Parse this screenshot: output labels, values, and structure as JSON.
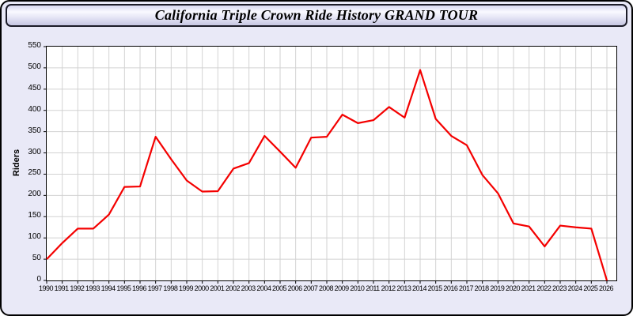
{
  "header": {
    "title": "California Triple Crown Ride History GRAND TOUR"
  },
  "colors": {
    "line": "#f40000",
    "page_background": "#e9e9f7",
    "plot_background": "#ffffff",
    "gridline": "#d2d2d2",
    "axis": "#000000"
  },
  "chart_data": {
    "type": "line",
    "title": "California Triple Crown Ride History GRAND TOUR",
    "xlabel": "",
    "ylabel": "Riders",
    "ylim": [
      0,
      550
    ],
    "ytick_step": 50,
    "grid": true,
    "legend": "none",
    "x": [
      1990,
      1991,
      1992,
      1993,
      1994,
      1995,
      1996,
      1997,
      1998,
      1999,
      2000,
      2001,
      2002,
      2003,
      2004,
      2005,
      2006,
      2007,
      2008,
      2009,
      2010,
      2011,
      2012,
      2013,
      2014,
      2015,
      2016,
      2017,
      2018,
      2019,
      2020,
      2021,
      2022,
      2023,
      2024,
      2025,
      2026
    ],
    "series": [
      {
        "name": "Riders",
        "color": "#f40000",
        "values": [
          50,
          88,
          122,
          122,
          155,
          220,
          221,
          338,
          285,
          235,
          209,
          210,
          263,
          276,
          340,
          303,
          265,
          336,
          338,
          390,
          370,
          377,
          408,
          383,
          495,
          380,
          340,
          318,
          248,
          205,
          134,
          127,
          80,
          129,
          125,
          122,
          0
        ]
      }
    ]
  }
}
